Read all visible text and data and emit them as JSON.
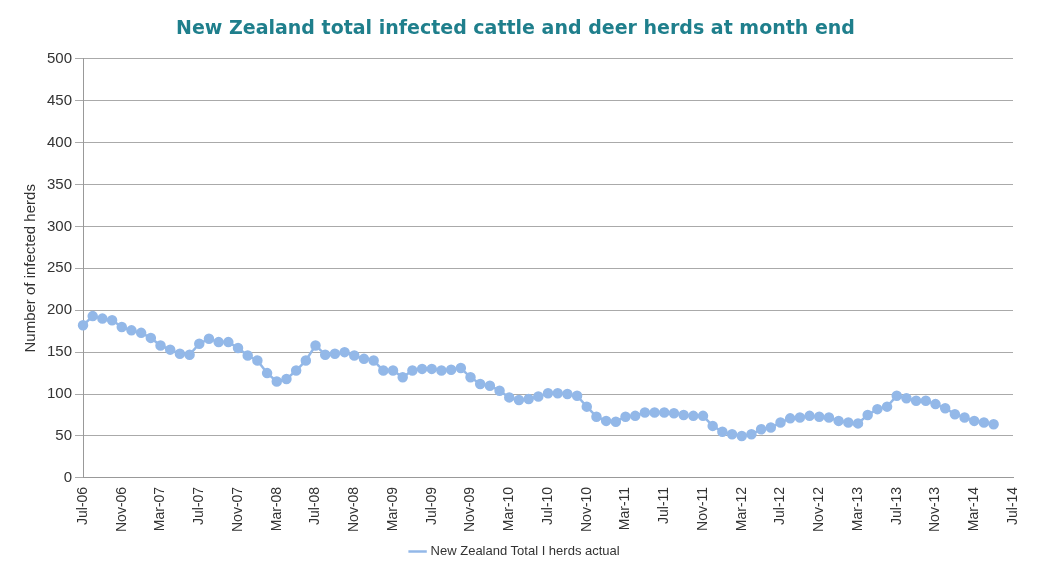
{
  "chart_data": {
    "type": "line",
    "title": "New Zealand total infected cattle and deer herds at month end",
    "ylabel": "Number of infected herds",
    "categories": [
      "Jul-06",
      null,
      null,
      null,
      "Nov-06",
      null,
      null,
      null,
      "Mar-07",
      null,
      null,
      null,
      "Jul-07",
      null,
      null,
      null,
      "Nov-07",
      null,
      null,
      null,
      "Mar-08",
      null,
      null,
      null,
      "Jul-08",
      null,
      null,
      null,
      "Nov-08",
      null,
      null,
      null,
      "Mar-09",
      null,
      null,
      null,
      "Jul-09",
      null,
      null,
      null,
      "Nov-09",
      null,
      null,
      null,
      "Mar-10",
      null,
      null,
      null,
      "Jul-10",
      null,
      null,
      null,
      "Nov-10",
      null,
      null,
      null,
      "Mar-11",
      null,
      null,
      null,
      "Jul-11",
      null,
      null,
      null,
      "Nov-11",
      null,
      null,
      null,
      "Mar-12",
      null,
      null,
      null,
      "Jul-12",
      null,
      null,
      null,
      "Nov-12",
      null,
      null,
      null,
      "Mar-13",
      null,
      null,
      null,
      "Jul-13",
      null,
      null,
      null,
      "Nov-13",
      null,
      null,
      null,
      "Mar-14",
      null,
      null,
      null,
      "Jul-14"
    ],
    "series": [
      {
        "name": "New Zealand Total I herds actual",
        "color": "#93b8e8",
        "values": [
          182,
          193,
          190,
          188,
          180,
          176,
          173,
          167,
          158,
          153,
          148,
          147,
          160,
          166,
          162,
          162,
          155,
          146,
          140,
          125,
          115,
          118,
          128,
          140,
          158,
          147,
          148,
          150,
          146,
          142,
          140,
          128,
          128,
          120,
          128,
          130,
          130,
          128,
          129,
          131,
          120,
          112,
          110,
          104,
          96,
          93,
          94,
          97,
          101,
          101,
          100,
          98,
          85,
          73,
          68,
          67,
          73,
          74,
          78,
          78,
          78,
          77,
          75,
          74,
          74,
          62,
          55,
          52,
          50,
          52,
          58,
          60,
          66,
          71,
          72,
          74,
          73,
          72,
          68,
          66,
          65,
          75,
          82,
          85,
          98,
          95,
          92,
          92,
          88,
          83,
          76,
          72,
          68,
          66,
          64,
          null,
          null
        ]
      }
    ],
    "ylim": [
      0,
      500
    ],
    "yticks": [
      0,
      50,
      100,
      150,
      200,
      250,
      300,
      350,
      400,
      450,
      500
    ],
    "grid": "y",
    "legend": "bottom",
    "marker": "circle",
    "line_style": "solid"
  }
}
